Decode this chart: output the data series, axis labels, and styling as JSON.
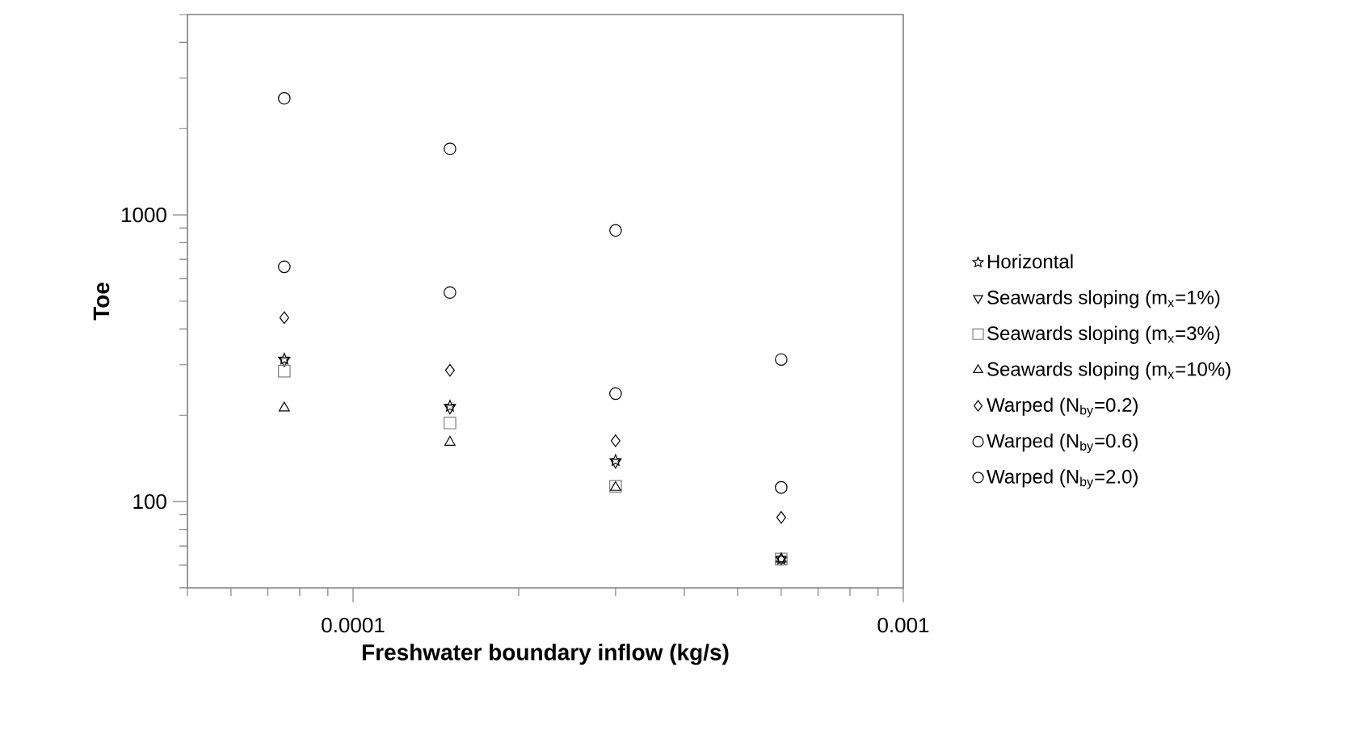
{
  "chart_data": {
    "type": "scatter",
    "xlabel": "Freshwater boundary inflow (kg/s)",
    "ylabel": "Toe",
    "log": "xy",
    "grid": false,
    "legend": "right",
    "x": [
      7.5e-05,
      0.00015,
      0.0003,
      0.0006
    ],
    "xlim": [
      5e-05,
      0.001
    ],
    "ylim": [
      50,
      5000
    ],
    "xticks": [
      {
        "value": 5e-05,
        "label": null
      },
      {
        "value": 6e-05,
        "label": null
      },
      {
        "value": 7e-05,
        "label": null
      },
      {
        "value": 8e-05,
        "label": null
      },
      {
        "value": 9e-05,
        "label": null
      },
      {
        "value": 0.0001,
        "label": "0.0001"
      },
      {
        "value": 0.0002,
        "label": null
      },
      {
        "value": 0.0003,
        "label": null
      },
      {
        "value": 0.0004,
        "label": null
      },
      {
        "value": 0.0005,
        "label": null
      },
      {
        "value": 0.0006,
        "label": null
      },
      {
        "value": 0.0007,
        "label": null
      },
      {
        "value": 0.0008,
        "label": null
      },
      {
        "value": 0.0009,
        "label": null
      },
      {
        "value": 0.001,
        "label": "0.001"
      }
    ],
    "yticks": [
      {
        "value": 50,
        "label": null
      },
      {
        "value": 60,
        "label": null
      },
      {
        "value": 70,
        "label": null
      },
      {
        "value": 80,
        "label": null
      },
      {
        "value": 90,
        "label": null
      },
      100,
      {
        "value": 200,
        "label": null
      },
      {
        "value": 300,
        "label": null
      },
      {
        "value": 400,
        "label": null
      },
      {
        "value": 500,
        "label": null
      },
      {
        "value": 600,
        "label": null
      },
      {
        "value": 700,
        "label": null
      },
      {
        "value": 800,
        "label": null
      },
      {
        "value": 900,
        "label": null
      },
      1000,
      {
        "value": 2000,
        "label": null
      },
      {
        "value": 3000,
        "label": null
      },
      {
        "value": 4000,
        "label": null
      },
      {
        "value": 5000,
        "label": null
      }
    ],
    "series": [
      {
        "name": "Horizontal",
        "color": "#000000",
        "marker": "star",
        "values": [
          314,
          215,
          139,
          63
        ]
      },
      {
        "name": "Seawards sloping (m$_{x}$=1%)",
        "color": "#000000",
        "marker": "triangle-down",
        "values": [
          310,
          212,
          137,
          63
        ]
      },
      {
        "name": "Seawards sloping (m$_{x}$=3%)",
        "color": "#808080",
        "marker": "square",
        "values": [
          285,
          188,
          113,
          63
        ]
      },
      {
        "name": "Seawards sloping (m$_{x}$=10%)",
        "color": "#000000",
        "marker": "triangle",
        "values": [
          212,
          161,
          112,
          63
        ]
      },
      {
        "name": "Warped (N$_{by}$=0.2)",
        "color": "#000000",
        "marker": "diamond",
        "values": [
          438,
          287,
          163,
          88
        ]
      },
      {
        "name": "Warped (N$_{by}$=0.6)",
        "color": "#000000",
        "marker": "circle",
        "values": [
          659,
          536,
          238,
          112
        ]
      },
      {
        "name": "Warped (N$_{by}$=2.0)",
        "color": "#000000",
        "marker": "circle",
        "values": [
          2550,
          1700,
          883,
          313
        ]
      }
    ]
  }
}
